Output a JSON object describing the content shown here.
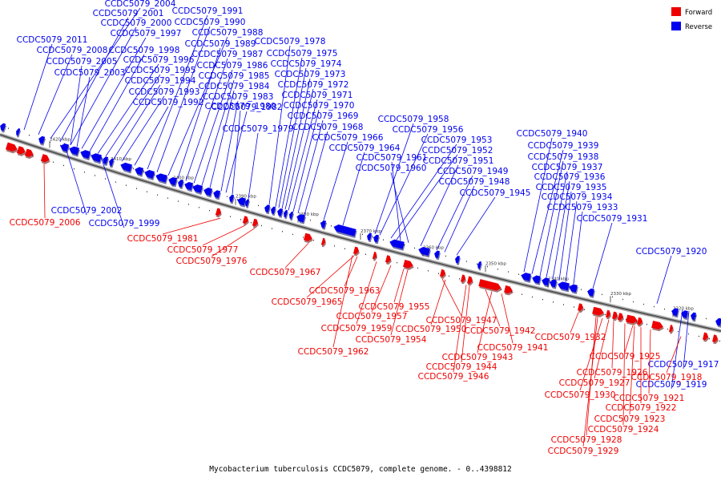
{
  "caption": "Mycobacterium tuberculosis CCDC5079, complete genome. - 0..4398812",
  "legend": {
    "forward": {
      "label": "Forward",
      "color": "#ee0000"
    },
    "reverse": {
      "label": "Reverse",
      "color": "#0000ee"
    }
  },
  "ticks": [
    "2420 kbp",
    "2410 kbp",
    "2400 kbp",
    "2390 kbp",
    "2380 kbp",
    "2370 kbp",
    "2360 kbp",
    "2350 kbp",
    "2340 kbp",
    "2330 kbp",
    "2320 kbp"
  ],
  "reverse_labels": [
    "CCDC5079_2004",
    "CCDC5079_2001",
    "CCDC5079_2000",
    "CCDC5079_1997",
    "CCDC5079_2011",
    "CCDC5079_2008",
    "CCDC5079_1998",
    "CCDC5079_2005",
    "CCDC5079_1996",
    "CCDC5079_2003",
    "CCDC5079_1995",
    "CCDC5079_1994",
    "CCDC5079_1993",
    "CCDC5079_1992",
    "CCDC5079_1991",
    "CCDC5079_1990",
    "CCDC5079_1988",
    "CCDC5079_1989",
    "CCDC5079_1987",
    "CCDC5079_1986",
    "CCDC5079_1985",
    "CCDC5079_1984",
    "CCDC5079_1983",
    "CCDC5079_1980",
    "CCDC5079_1982",
    "CCDC5079_1979",
    "CCDC5079_1978",
    "CCDC5079_1975",
    "CCDC5079_1974",
    "CCDC5079_1973",
    "CCDC5079_1972",
    "CCDC5079_1971",
    "CCDC5079_1970",
    "CCDC5079_1969",
    "CCDC5079_1968",
    "CCDC5079_1966",
    "CCDC5079_1964",
    "CCDC5079_1958",
    "CCDC5079_1956",
    "CCDC5079_1953",
    "CCDC5079_1952",
    "CCDC5079_1961",
    "CCDC5079_1951",
    "CCDC5079_1960",
    "CCDC5079_1949",
    "CCDC5079_1948",
    "CCDC5079_1945",
    "CCDC5079_1940",
    "CCDC5079_1939",
    "CCDC5079_1938",
    "CCDC5079_1937",
    "CCDC5079_1936",
    "CCDC5079_1935",
    "CCDC5079_1934",
    "CCDC5079_1933",
    "CCDC5079_1931",
    "CCDC5079_1920",
    "CCDC5079_2002",
    "CCDC5079_1999",
    "CCDC5079_1917",
    "CCDC5079_1919"
  ],
  "forward_labels": [
    "CCDC5079_2006",
    "CCDC5079_1981",
    "CCDC5079_1977",
    "CCDC5079_1976",
    "CCDC5079_1967",
    "CCDC5079_1963",
    "CCDC5079_1965",
    "CCDC5079_1955",
    "CCDC5079_1957",
    "CCDC5079_1959",
    "CCDC5079_1954",
    "CCDC5079_1962",
    "CCDC5079_1947",
    "CCDC5079_1950",
    "CCDC5079_1942",
    "CCDC5079_1941",
    "CCDC5079_1943",
    "CCDC5079_1944",
    "CCDC5079_1946",
    "CCDC5079_1932",
    "CCDC5079_1925",
    "CCDC5079_1926",
    "CCDC5079_1918",
    "CCDC5079_1927",
    "CCDC5079_1930",
    "CCDC5079_1921",
    "CCDC5079_1922",
    "CCDC5079_1923",
    "CCDC5079_1924",
    "CCDC5079_1928",
    "CCDC5079_1929"
  ]
}
